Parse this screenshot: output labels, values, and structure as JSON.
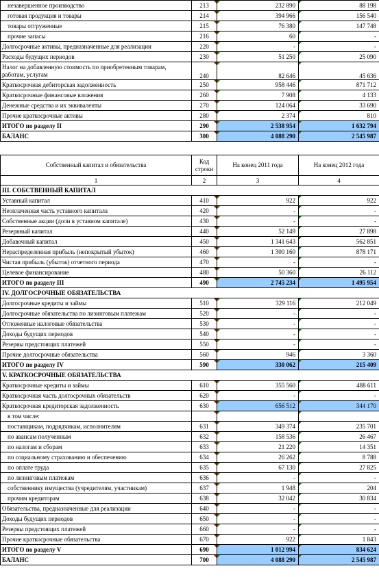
{
  "table1": {
    "rows": [
      {
        "label": "незавершенное производство",
        "code": "213",
        "v2011": "232 890",
        "v2012": "88 198",
        "indent": true
      },
      {
        "label": "готовая продукция и товары",
        "code": "214",
        "v2011": "394 966",
        "v2012": "156 540",
        "indent": true
      },
      {
        "label": "товары отгруженные",
        "code": "215",
        "v2011": "76 380",
        "v2012": "147 748",
        "indent": true
      },
      {
        "label": "прочие запасы",
        "code": "216",
        "v2011": "60",
        "v2012": "-",
        "indent": true
      },
      {
        "label": "Долгосрочные активы, предназначенные для реализации",
        "code": "220",
        "v2011": "-",
        "v2012": "-"
      },
      {
        "label": "Расходы будущих периодов",
        "code": "230",
        "v2011": "51 250",
        "v2012": "25 090"
      },
      {
        "label": "Налог на добавленную стоимость по приобретенным товарам, работам, услугам",
        "code": "240",
        "v2011": "82 646",
        "v2012": "45 636",
        "tall": true
      },
      {
        "label": "Краткосрочная дебиторская задолженность",
        "code": "250",
        "v2011": "958 446",
        "v2012": "871 712"
      },
      {
        "label": "Краткосрочные финансовые вложения",
        "code": "260",
        "v2011": "7 908",
        "v2012": "4 133"
      },
      {
        "label": "Денежные средства и их эквиваленты",
        "code": "270",
        "v2011": "124 064",
        "v2012": "33 690"
      },
      {
        "label": "Прочие краткосрочные активы",
        "code": "280",
        "v2011": "2 374",
        "v2012": "810"
      },
      {
        "label": "ИТОГО по разделу II",
        "code": "290",
        "v2011": "2 538 954",
        "v2012": "1 632 794",
        "bold": true,
        "hl": true
      },
      {
        "label": "БАЛАНС",
        "code": "300",
        "v2011": "4 088 290",
        "v2012": "2 545 987",
        "bold": true,
        "hl": true
      }
    ]
  },
  "table2": {
    "header": {
      "col1": "Собственный капитал и обязательства",
      "col2": "Код строки",
      "col3": "На конец 2011 года",
      "col4": "На конец 2012 года"
    },
    "colnums": [
      "1",
      "2",
      "3",
      "4"
    ],
    "rows": [
      {
        "section": "III. СОБСТВЕННЫЙ КАПИТАЛ"
      },
      {
        "label": "Уставный капитал",
        "code": "410",
        "v2011": "922",
        "v2012": "922"
      },
      {
        "label": "Неоплаченная часть уставного капитала",
        "code": "420",
        "v2011": "-",
        "v2012": "-"
      },
      {
        "label": "Собственные акции (доли в уставном капитале)",
        "code": "430",
        "v2011": "-",
        "v2012": "-"
      },
      {
        "label": "Резервный капитал",
        "code": "440",
        "v2011": "52 149",
        "v2012": "27 898"
      },
      {
        "label": "Добавочный капитал",
        "code": "450",
        "v2011": "1 341 643",
        "v2012": "562 851"
      },
      {
        "label": "Нераспределенная прибыль (непокрытый убыток)",
        "code": "460",
        "v2011": "1 300 160",
        "v2012": "878 171"
      },
      {
        "label": "Чистая прибыль (убыток) отчетного периода",
        "code": "470",
        "v2011": "-",
        "v2012": "-"
      },
      {
        "label": "Целевое финансирование",
        "code": "480",
        "v2011": "50 360",
        "v2012": "26 112"
      },
      {
        "label": "ИТОГО по разделу III",
        "code": "490",
        "v2011": "2 745 234",
        "v2012": "1 495 954",
        "bold": true,
        "hl": true
      },
      {
        "section": "IV. ДОЛГОСРОЧНЫЕ ОБЯЗАТЕЛЬСТВА"
      },
      {
        "label": "Долгосрочные кредиты и займы",
        "code": "510",
        "v2011": "329 116",
        "v2012": "212 049"
      },
      {
        "label": "Долгосрочные обязательства по лизинговым платежам",
        "code": "520",
        "v2011": "-",
        "v2012": "-"
      },
      {
        "label": "Отложенные налоговые обязательства",
        "code": "530",
        "v2011": "-",
        "v2012": "-"
      },
      {
        "label": "Доходы будущих периодов",
        "code": "540",
        "v2011": "-",
        "v2012": "-"
      },
      {
        "label": "Резервы предстоящих платежей",
        "code": "550",
        "v2011": "-",
        "v2012": "-"
      },
      {
        "label": "Прочие долгосрочные обязательства",
        "code": "560",
        "v2011": "946",
        "v2012": "3 360"
      },
      {
        "label": "ИТОГО по разделу IV",
        "code": "590",
        "v2011": "330 062",
        "v2012": "215 409",
        "bold": true,
        "hl": true
      },
      {
        "section": "V. КРАТКОСРОЧНЫЕ ОБЯЗАТЕЛЬСТВА"
      },
      {
        "label": "Краткосрочные кредиты и займы",
        "code": "610",
        "v2011": "355 560",
        "v2012": "488 611"
      },
      {
        "label": "Краткосрочная часть долгосрочных обязательств",
        "code": "620",
        "v2011": "-",
        "v2012": "-"
      },
      {
        "label": "Краткосрочная кредиторская задолженность",
        "code": "630",
        "v2011": "656 512",
        "v2012": "344 170",
        "hl": true
      },
      {
        "label": "в том числе:",
        "code": "",
        "v2011": "",
        "v2012": "",
        "indent": true,
        "blank": true
      },
      {
        "label": "поставщикам, подрядчикам, исполнителям",
        "code": "631",
        "v2011": "349 374",
        "v2012": "235 701",
        "indent": true
      },
      {
        "label": "по авансам полученным",
        "code": "632",
        "v2011": "158 536",
        "v2012": "26 467",
        "indent": true
      },
      {
        "label": "по налогам и сборам",
        "code": "633",
        "v2011": "21 220",
        "v2012": "14 351",
        "indent": true
      },
      {
        "label": "по социальному страхованию и обеспечению",
        "code": "634",
        "v2011": "26 262",
        "v2012": "8 788",
        "indent": true
      },
      {
        "label": "по оплате труда",
        "code": "635",
        "v2011": "67 130",
        "v2012": "27 825",
        "indent": true
      },
      {
        "label": "по лизинговым платежам",
        "code": "636",
        "v2011": "-",
        "v2012": "-",
        "indent": true
      },
      {
        "label": "собственнику имущества (учредителям, участникам)",
        "code": "637",
        "v2011": "1 948",
        "v2012": "204",
        "indent": true
      },
      {
        "label": "прочим кредиторам",
        "code": "638",
        "v2011": "32 042",
        "v2012": "30 834",
        "indent": true
      },
      {
        "label": "Обязательства, предназначенные для реализации",
        "code": "640",
        "v2011": "-",
        "v2012": "-"
      },
      {
        "label": "Доходы будущих периодов",
        "code": "650",
        "v2011": "-",
        "v2012": "-"
      },
      {
        "label": "Резервы предстоящих платежей",
        "code": "660",
        "v2011": "-",
        "v2012": "-"
      },
      {
        "label": "Прочие краткосрочные обязательства",
        "code": "670",
        "v2011": "922",
        "v2012": "1 843"
      },
      {
        "label": "ИТОГО по разделу V",
        "code": "690",
        "v2011": "1 012 994",
        "v2012": "834 624",
        "bold": true,
        "hl": true
      },
      {
        "label": "БАЛАНС",
        "code": "700",
        "v2011": "4 088 290",
        "v2012": "2 545 987",
        "bold": true,
        "hl": true
      }
    ]
  }
}
